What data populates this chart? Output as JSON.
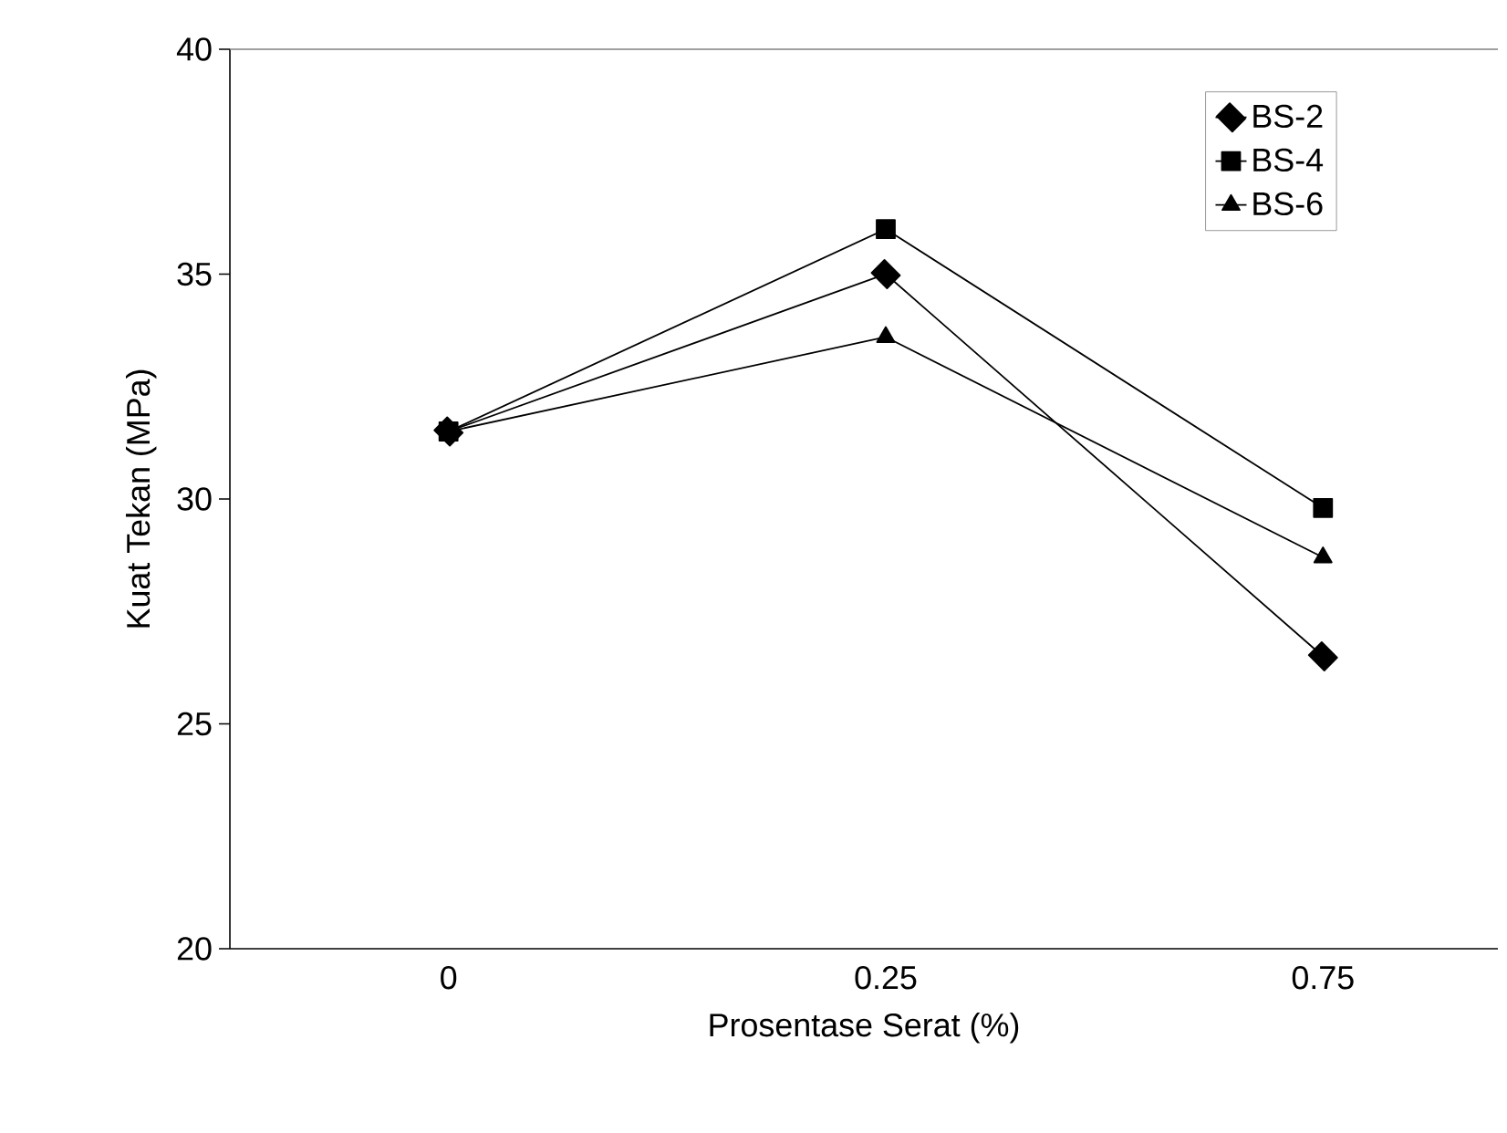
{
  "chart_data": {
    "type": "line",
    "xlabel": "Prosentase Serat (%)",
    "ylabel": "Kuat Tekan (MPa)",
    "categories": [
      "0",
      "0.25",
      "0.75"
    ],
    "series": [
      {
        "name": "BS-2",
        "color": "#000000",
        "marker": "diamond",
        "values": [
          31.5,
          35.0,
          26.5
        ]
      },
      {
        "name": "BS-4",
        "color": "#000000",
        "marker": "square",
        "values": [
          31.5,
          36.0,
          29.8
        ]
      },
      {
        "name": "BS-6",
        "color": "#000000",
        "marker": "triangle",
        "values": [
          31.5,
          33.6,
          28.7
        ]
      }
    ],
    "ylim": [
      20,
      40
    ],
    "yticks": [
      20,
      25,
      30,
      35,
      40
    ],
    "grid": false,
    "legend": "top right",
    "line_style": "solid"
  }
}
